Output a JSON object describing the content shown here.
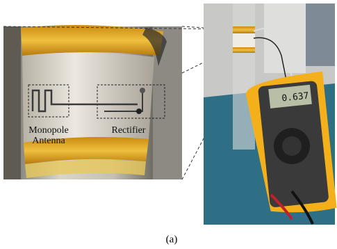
{
  "figure": {
    "antenna_label": "Monopole Antenna",
    "rectifier_label": "Rectifier",
    "meter_reading": "0.637",
    "caption": "(a)"
  }
}
